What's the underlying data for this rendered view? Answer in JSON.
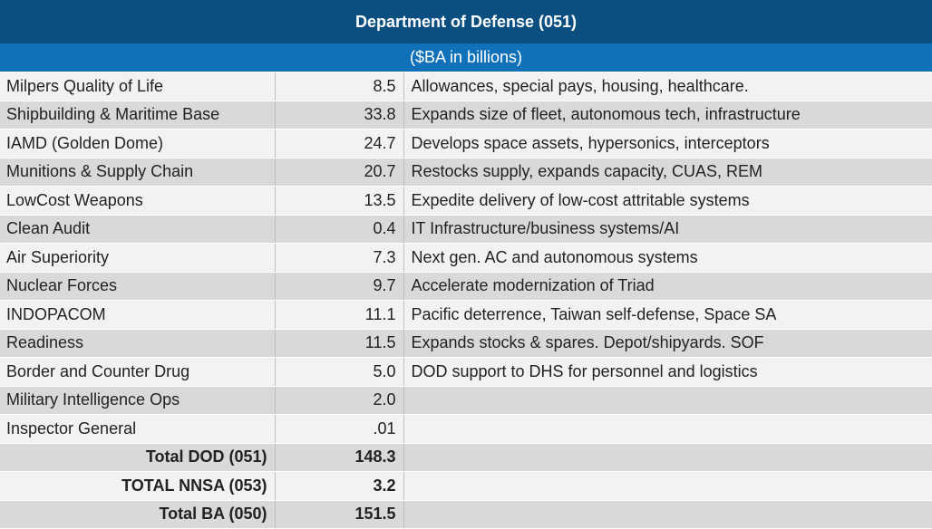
{
  "title": "Department of Defense (051)",
  "subtitle": "($BA in billions)",
  "rows": [
    {
      "name": "Milpers Quality of Life",
      "value": "8.5",
      "description": "Allowances, special pays, housing, healthcare."
    },
    {
      "name": "Shipbuilding & Maritime Base",
      "value": "33.8",
      "description": "Expands size of fleet, autonomous tech, infrastructure"
    },
    {
      "name": "IAMD (Golden Dome)",
      "value": "24.7",
      "description": "Develops space assets, hypersonics, interceptors"
    },
    {
      "name": "Munitions & Supply Chain",
      "value": "20.7",
      "description": "Restocks supply, expands capacity, CUAS, REM"
    },
    {
      "name": "LowCost Weapons",
      "value": "13.5",
      "description": "Expedite delivery of low-cost attritable systems"
    },
    {
      "name": "Clean Audit",
      "value": "0.4",
      "description": "IT Infrastructure/business systems/AI"
    },
    {
      "name": "Air Superiority",
      "value": "7.3",
      "description": "Next gen. AC and autonomous systems"
    },
    {
      "name": "Nuclear Forces",
      "value": "9.7",
      "description": "Accelerate modernization of Triad"
    },
    {
      "name": "INDOPACOM",
      "value": "11.1",
      "description": "Pacific deterrence, Taiwan self-defense, Space SA"
    },
    {
      "name": "Readiness",
      "value": "11.5",
      "description": "Expands stocks & spares. Depot/shipyards. SOF"
    },
    {
      "name": "Border and Counter Drug",
      "value": "5.0",
      "description": "DOD support to DHS for personnel and logistics"
    },
    {
      "name": "Military Intelligence Ops",
      "value": "2.0",
      "description": ""
    },
    {
      "name": "Inspector General",
      "value": ".01",
      "description": ""
    }
  ],
  "totals": [
    {
      "name": "Total DOD (051)",
      "value": "148.3"
    },
    {
      "name": "TOTAL NNSA (053)",
      "value": "3.2"
    },
    {
      "name": "Total BA (050)",
      "value": "151.5"
    }
  ]
}
